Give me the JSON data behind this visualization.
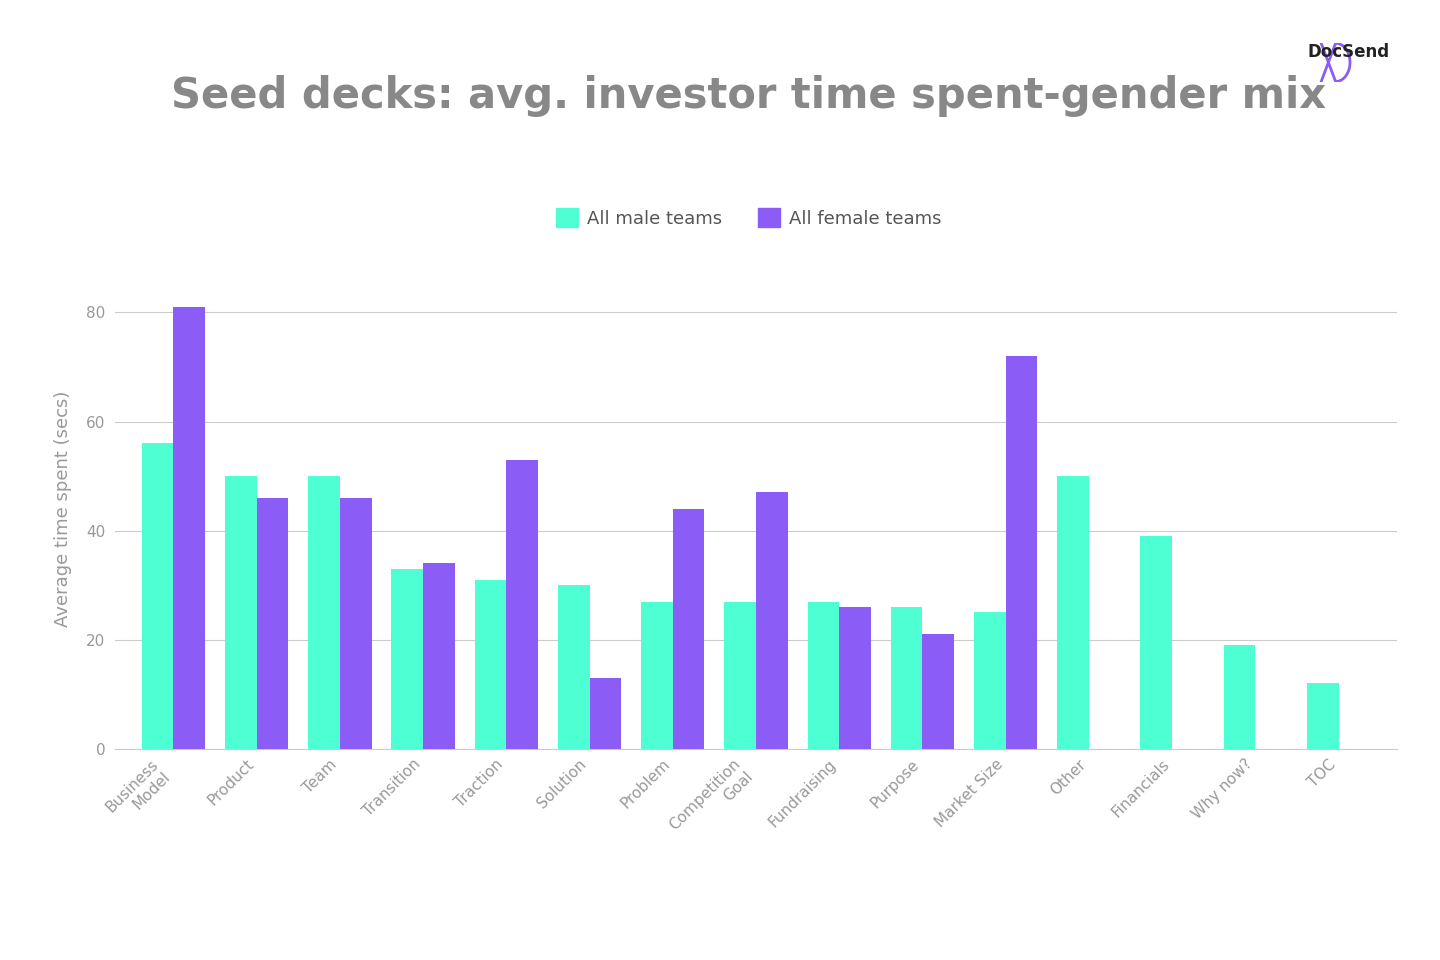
{
  "title": "Seed decks: avg. investor time spent-gender mix",
  "ylabel": "Average time spent (secs)",
  "categories": [
    "Business\nModel",
    "Product",
    "Team",
    "Transition",
    "Traction",
    "Solution",
    "Problem",
    "Competition\nGoal",
    "Fundraising",
    "Purpose",
    "Market Size",
    "Other",
    "Financials",
    "Why now?",
    "TOC"
  ],
  "male_values": [
    56,
    50,
    50,
    33,
    31,
    30,
    27,
    27,
    27,
    26,
    25,
    50,
    39,
    19,
    12
  ],
  "female_values": [
    81,
    46,
    46,
    34,
    53,
    13,
    44,
    47,
    26,
    21,
    72,
    null,
    null,
    null,
    null
  ],
  "male_color": "#4DFFD2",
  "female_color": "#8B5CF6",
  "background_color": "#FFFFFF",
  "legend_male": "All male teams",
  "legend_female": "All female teams",
  "ylim": [
    0,
    88
  ],
  "yticks": [
    0,
    20,
    40,
    60,
    80
  ],
  "title_fontsize": 30,
  "axis_label_fontsize": 13,
  "tick_fontsize": 11,
  "legend_fontsize": 13,
  "bar_width": 0.38
}
